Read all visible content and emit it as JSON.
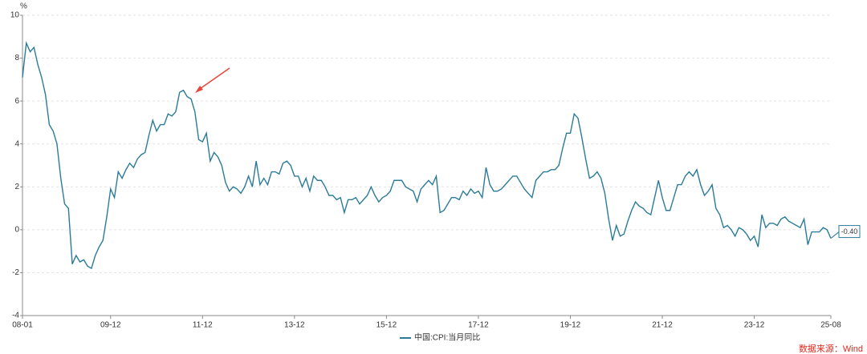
{
  "chart_data": {
    "type": "line",
    "y_unit": "%",
    "categories": [
      "08-01",
      null,
      null,
      null,
      null,
      null,
      null,
      null,
      null,
      null,
      null,
      null,
      null,
      null,
      null,
      null,
      null,
      null,
      null,
      null,
      null,
      null,
      null,
      "09-12",
      null,
      null,
      null,
      null,
      null,
      null,
      null,
      null,
      null,
      null,
      null,
      null,
      null,
      null,
      null,
      null,
      null,
      null,
      null,
      null,
      null,
      null,
      null,
      "11-12",
      null,
      null,
      null,
      null,
      null,
      null,
      null,
      null,
      null,
      null,
      null,
      null,
      null,
      null,
      null,
      null,
      null,
      null,
      null,
      null,
      null,
      null,
      null,
      "13-12",
      null,
      null,
      null,
      null,
      null,
      null,
      null,
      null,
      null,
      null,
      null,
      null,
      null,
      null,
      null,
      null,
      null,
      null,
      null,
      null,
      null,
      null,
      null,
      "15-12",
      null,
      null,
      null,
      null,
      null,
      null,
      null,
      null,
      null,
      null,
      null,
      null,
      null,
      null,
      null,
      null,
      null,
      null,
      null,
      null,
      null,
      null,
      null,
      "17-12",
      null,
      null,
      null,
      null,
      null,
      null,
      null,
      null,
      null,
      null,
      null,
      null,
      null,
      null,
      null,
      null,
      null,
      null,
      null,
      null,
      null,
      null,
      null,
      "19-12",
      null,
      null,
      null,
      null,
      null,
      null,
      null,
      null,
      null,
      null,
      null,
      null,
      null,
      null,
      null,
      null,
      null,
      null,
      null,
      null,
      null,
      null,
      null,
      "21-12",
      null,
      null,
      null,
      null,
      null,
      null,
      null,
      null,
      null,
      null,
      null,
      null,
      null,
      null,
      null,
      null,
      null,
      null,
      null,
      null,
      null,
      null,
      null,
      "23-12",
      null,
      null,
      null,
      null,
      null,
      null,
      null,
      null,
      null,
      null,
      null,
      null,
      null,
      null,
      null,
      null,
      null,
      null,
      null,
      "25-08"
    ],
    "series": [
      {
        "name": "中国:CPI:当月同比",
        "color": "#2b7b98",
        "values": [
          7.1,
          8.7,
          8.3,
          8.5,
          7.7,
          7.1,
          6.3,
          4.9,
          4.6,
          4.0,
          2.4,
          1.2,
          1.0,
          -1.6,
          -1.2,
          -1.5,
          -1.4,
          -1.7,
          -1.8,
          -1.2,
          -0.8,
          -0.5,
          0.6,
          1.9,
          1.5,
          2.7,
          2.4,
          2.8,
          3.1,
          2.9,
          3.3,
          3.5,
          3.6,
          4.4,
          5.1,
          4.6,
          4.9,
          4.9,
          5.4,
          5.3,
          5.5,
          6.4,
          6.5,
          6.2,
          6.1,
          5.5,
          4.2,
          4.1,
          4.5,
          3.2,
          3.6,
          3.4,
          3.0,
          2.2,
          1.8,
          2.0,
          1.9,
          1.7,
          2.0,
          2.5,
          2.0,
          3.2,
          2.1,
          2.4,
          2.1,
          2.7,
          2.7,
          2.6,
          3.1,
          3.2,
          3.0,
          2.5,
          2.5,
          2.0,
          2.4,
          1.8,
          2.5,
          2.3,
          2.3,
          2.0,
          1.6,
          1.6,
          1.4,
          1.5,
          0.8,
          1.4,
          1.4,
          1.5,
          1.2,
          1.4,
          1.6,
          2.0,
          1.6,
          1.3,
          1.5,
          1.6,
          1.8,
          2.3,
          2.3,
          2.3,
          2.0,
          1.9,
          1.8,
          1.3,
          1.9,
          2.1,
          2.3,
          2.1,
          2.5,
          0.8,
          0.9,
          1.2,
          1.5,
          1.5,
          1.4,
          1.8,
          1.6,
          1.9,
          1.7,
          1.8,
          1.5,
          2.9,
          2.1,
          1.8,
          1.8,
          1.9,
          2.1,
          2.3,
          2.5,
          2.5,
          2.2,
          1.9,
          1.7,
          1.5,
          2.3,
          2.5,
          2.7,
          2.7,
          2.8,
          2.8,
          3.0,
          3.8,
          4.5,
          4.5,
          5.4,
          5.2,
          4.3,
          3.3,
          2.4,
          2.5,
          2.7,
          2.4,
          1.7,
          0.5,
          -0.5,
          0.2,
          -0.3,
          -0.2,
          0.4,
          0.9,
          1.3,
          1.1,
          1.0,
          0.8,
          0.7,
          1.5,
          2.3,
          1.5,
          0.9,
          0.9,
          1.5,
          2.1,
          2.1,
          2.5,
          2.7,
          2.5,
          2.8,
          2.1,
          1.6,
          1.8,
          2.1,
          1.0,
          0.7,
          0.1,
          0.2,
          0.0,
          -0.3,
          0.1,
          0.0,
          -0.2,
          -0.5,
          -0.3,
          -0.8,
          0.7,
          0.1,
          0.3,
          0.3,
          0.2,
          0.5,
          0.6,
          0.4,
          0.3,
          0.2,
          0.1,
          0.5,
          -0.7,
          -0.1,
          -0.1,
          -0.1,
          0.1,
          0.0,
          -0.4
        ],
        "value_labels": [
          null,
          null,
          null,
          null,
          null,
          null,
          null,
          null,
          null,
          null,
          null,
          null,
          null,
          null,
          null,
          null,
          null,
          null,
          null,
          null,
          null,
          null,
          null,
          null,
          null,
          null,
          null,
          null,
          null,
          null,
          null,
          null,
          null,
          null,
          null,
          null,
          null,
          null,
          null,
          null,
          null,
          null,
          null,
          null,
          null,
          null,
          null,
          null,
          null,
          null,
          null,
          null,
          null,
          null,
          null,
          null,
          null,
          null,
          null,
          null,
          null,
          null,
          null,
          null,
          null,
          null,
          null,
          null,
          null,
          null,
          null,
          null,
          null,
          null,
          null,
          null,
          null,
          null,
          null,
          null,
          null,
          null,
          null,
          null,
          null,
          null,
          null,
          null,
          null,
          null,
          null,
          null,
          null,
          null,
          null,
          null,
          null,
          null,
          null,
          null,
          null,
          null,
          null,
          null,
          null,
          null,
          null,
          null,
          null,
          null,
          null,
          null,
          null,
          null,
          null,
          null,
          null,
          null,
          null,
          null,
          null,
          null,
          null,
          null,
          null,
          null,
          null,
          null,
          null,
          null,
          null,
          null,
          null,
          null,
          null,
          null,
          null,
          null,
          null,
          null,
          null,
          null,
          null,
          null,
          null,
          null,
          null,
          null,
          null,
          null,
          null,
          null,
          null,
          null,
          null,
          null,
          null,
          null,
          null,
          null,
          null,
          null,
          null,
          null,
          null,
          null,
          null,
          null,
          null,
          null,
          null,
          null,
          null,
          null,
          null,
          null,
          null,
          null,
          null,
          null,
          null,
          null,
          null,
          null,
          null,
          null,
          null,
          null,
          null,
          null,
          null,
          null,
          null,
          null,
          null,
          null,
          null,
          null,
          null,
          null,
          null,
          null,
          null,
          null,
          null,
          null,
          null,
          null,
          null,
          null,
          null,
          "-0.40"
        ]
      }
    ],
    "ylim": [
      -4,
      10
    ],
    "yticks": [
      -4,
      -2,
      0,
      2,
      4,
      6,
      8,
      10
    ],
    "grid": true,
    "legend": "bottom",
    "source": "数据来源：Wind"
  }
}
